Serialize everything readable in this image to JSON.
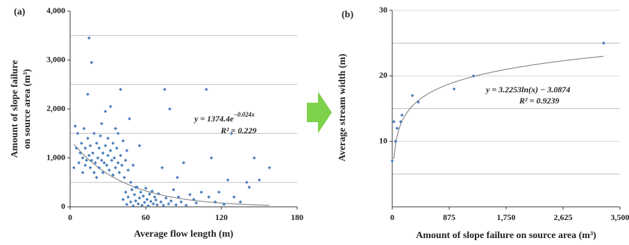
{
  "chart_data": [
    {
      "type": "scatter",
      "title": "(a)",
      "xlabel": "Average flow length (m)",
      "ylabel": [
        "Amount of slope failure",
        "on source area (m³)"
      ],
      "color": "#4a7ebb",
      "x": [
        3,
        4,
        5,
        6,
        7,
        8,
        9,
        10,
        10,
        11,
        12,
        12,
        13,
        14,
        14,
        15,
        15,
        16,
        16,
        17,
        17,
        18,
        19,
        19,
        20,
        21,
        21,
        22,
        23,
        23,
        24,
        25,
        25,
        26,
        26,
        27,
        28,
        28,
        29,
        30,
        30,
        31,
        32,
        32,
        33,
        34,
        34,
        35,
        36,
        36,
        37,
        38,
        38,
        39,
        40,
        40,
        41,
        42,
        43,
        44,
        45,
        46,
        47,
        48,
        50,
        52,
        55,
        42,
        44,
        45,
        46,
        48,
        49,
        50,
        51,
        52,
        53,
        54,
        55,
        56,
        57,
        58,
        59,
        60,
        61,
        62,
        63,
        64,
        65,
        66,
        67,
        68,
        69,
        70,
        72,
        73,
        74,
        75,
        76,
        78,
        79,
        80,
        82,
        84,
        85,
        86,
        88,
        90,
        92,
        95,
        98,
        100,
        104,
        108,
        110,
        112,
        115,
        118,
        122,
        125,
        128,
        130,
        135,
        140,
        142,
        146,
        150,
        158
      ],
      "values": [
        800,
        1650,
        1200,
        1500,
        900,
        1100,
        1300,
        700,
        1000,
        1600,
        850,
        1200,
        950,
        1400,
        2300,
        3450,
        1050,
        800,
        1250,
        2950,
        950,
        1100,
        700,
        1500,
        900,
        1300,
        600,
        1000,
        1200,
        800,
        1450,
        950,
        1700,
        1100,
        700,
        900,
        1250,
        1950,
        850,
        1050,
        1400,
        750,
        1150,
        2050,
        950,
        1300,
        650,
        1000,
        1600,
        800,
        1200,
        900,
        1500,
        700,
        1050,
        2400,
        850,
        1350,
        600,
        950,
        1150,
        750,
        1800,
        500,
        850,
        400,
        1250,
        150,
        300,
        50,
        200,
        100,
        350,
        20,
        250,
        120,
        400,
        60,
        180,
        300,
        30,
        220,
        90,
        380,
        150,
        20,
        260,
        110,
        320,
        60,
        200,
        140,
        40,
        270,
        100,
        800,
        30,
        2400,
        180,
        60,
        2000,
        120,
        350,
        40,
        600,
        200,
        100,
        900,
        30,
        250,
        150,
        80,
        300,
        2400,
        200,
        1000,
        100,
        300,
        50,
        550,
        1500,
        200,
        100,
        500,
        400,
        1000,
        550,
        800
      ],
      "xlim": [
        0,
        180
      ],
      "xticks": [
        0,
        60,
        120,
        180
      ],
      "ylim": [
        0,
        4000
      ],
      "yticks": [
        0,
        {
          "value": 1000,
          "label": "1,000"
        },
        {
          "value": 2000,
          "label": "2,000"
        },
        {
          "value": 3000,
          "label": "3,000"
        },
        {
          "value": 4000,
          "label": "4,000"
        }
      ],
      "minor_yticks": [
        500,
        1500,
        2500,
        3500
      ],
      "grid": true,
      "trendline": {
        "type": "exp",
        "a": 1374.4,
        "b": -0.024,
        "equation": "y = 1374.4e",
        "equation_exponent": "−0.024x",
        "r2_label": "R² = 0.229"
      }
    },
    {
      "type": "scatter",
      "title": "(b)",
      "xlabel": "Amount of slope failure on source area (m³)",
      "ylabel": [
        "Average stream width (m)"
      ],
      "color": "#4a7ebb",
      "x": [
        0,
        25,
        50,
        75,
        130,
        150,
        310,
        400,
        950,
        1250,
        3250
      ],
      "values": [
        7,
        13,
        10,
        12,
        13,
        14,
        17,
        16,
        18,
        20,
        25
      ],
      "xlim": [
        0,
        3500
      ],
      "xticks": [
        0,
        875,
        {
          "value": 1750,
          "label": "1,750"
        },
        {
          "value": 2625,
          "label": "2,625"
        },
        {
          "value": 3500,
          "label": "3,500"
        }
      ],
      "ylim": [
        0,
        30
      ],
      "yticks": [
        10,
        20,
        30
      ],
      "minor_yticks": [
        5,
        15,
        25
      ],
      "grid": true,
      "trendline": {
        "type": "log",
        "a": 3.2253,
        "b": -3.0874,
        "equation": "y = 3.2253ln(x) − 3.0874",
        "r2_label": "R² = 0.9239"
      }
    }
  ]
}
